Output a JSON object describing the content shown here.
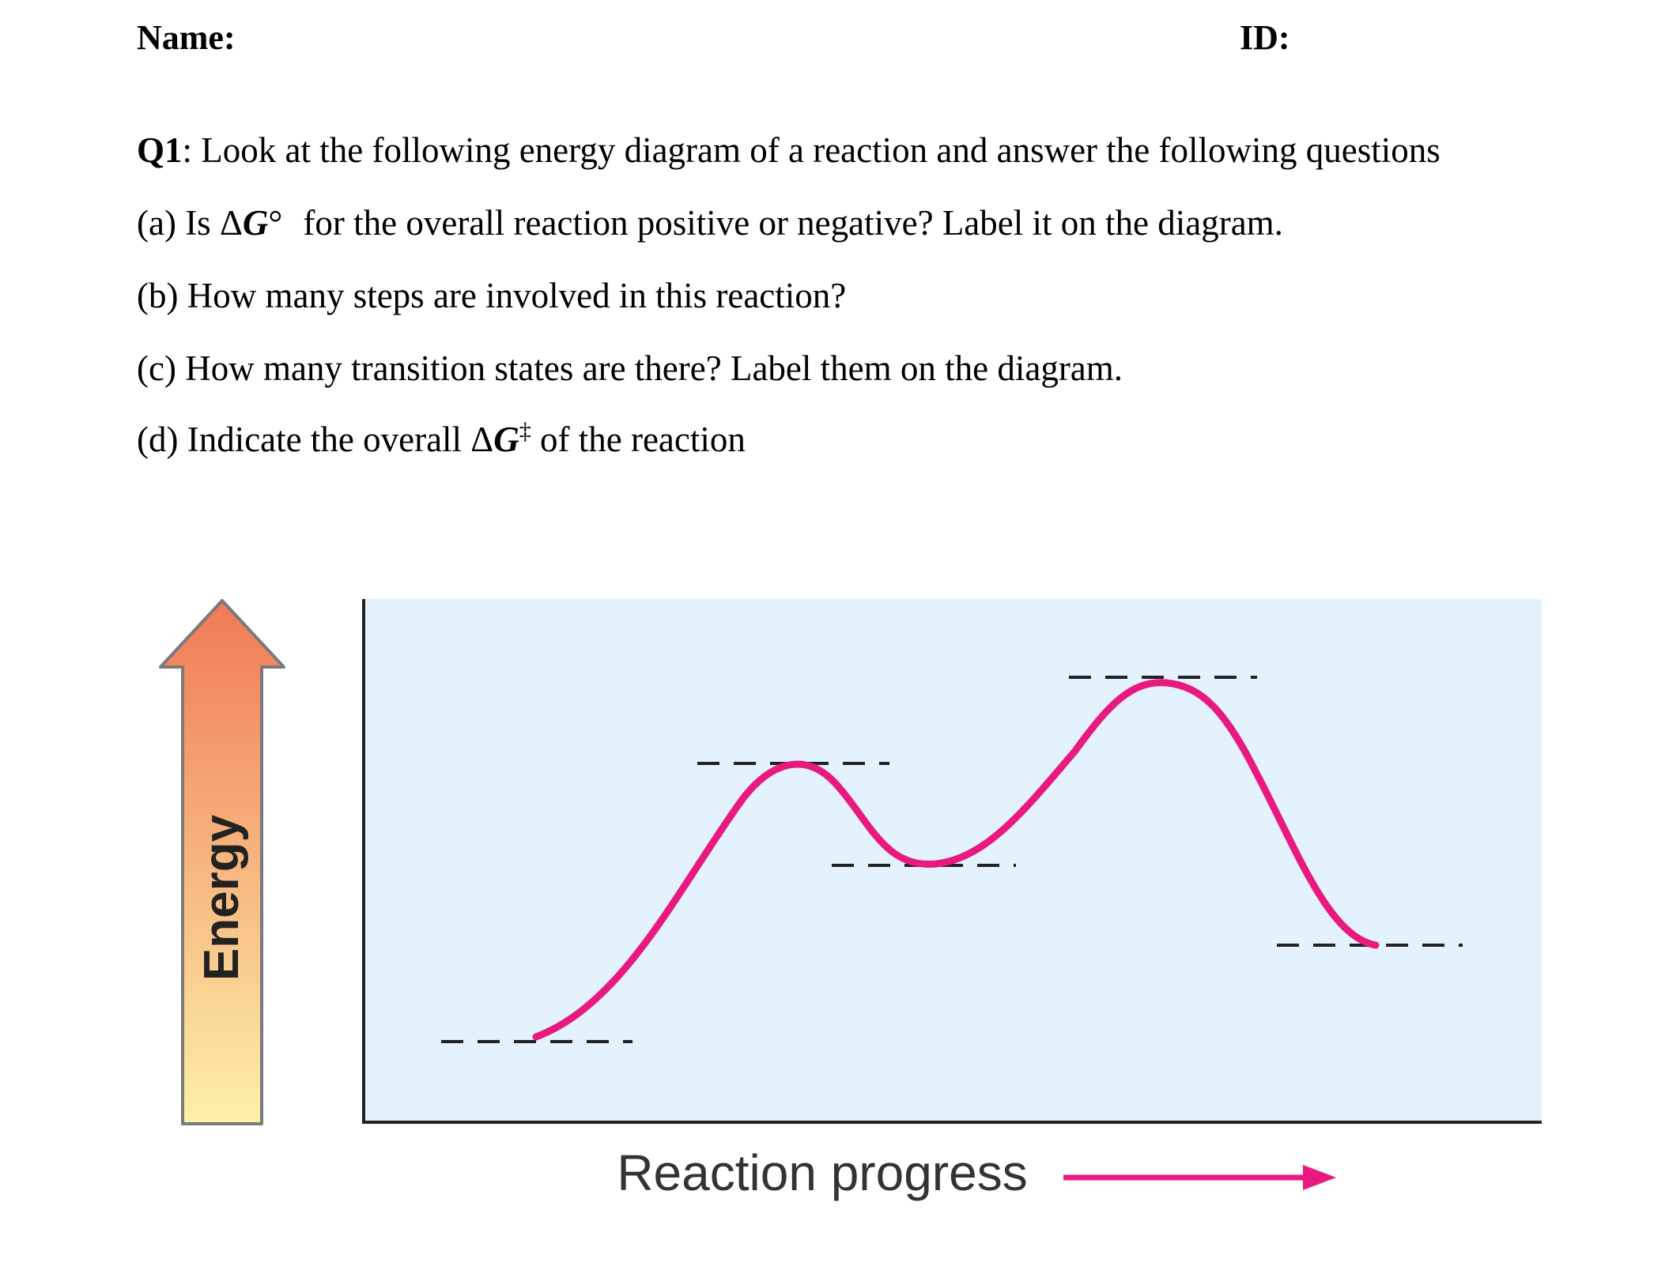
{
  "header": {
    "name_label": "Name:",
    "id_label": "ID:"
  },
  "question": {
    "number": "Q1",
    "intro": ": Look at the following energy diagram of a reaction and answer the following questions",
    "a_prefix": "(a) Is ",
    "a_delta": "Δ",
    "a_symbol": "G",
    "a_degree": "°",
    "a_suffix": "for the overall reaction positive or negative? Label it on the diagram.",
    "b": "(b) How many steps are involved in this reaction?",
    "c": "(c) How many transition states are there? Label them on the diagram.",
    "d_prefix": "(d) Indicate the overall ",
    "d_delta": "Δ",
    "d_symbol": "G",
    "d_dagger": "‡",
    "d_suffix": " of the reaction"
  },
  "diagram": {
    "y_axis_label": "Energy",
    "x_axis_label": "Reaction progress",
    "colors": {
      "curve": "#e8197f",
      "panel": "#e3f2fc",
      "axis": "#222222",
      "energy_arrow_top": "#f07a55",
      "energy_arrow_bottom": "#fdf0a8"
    }
  }
}
